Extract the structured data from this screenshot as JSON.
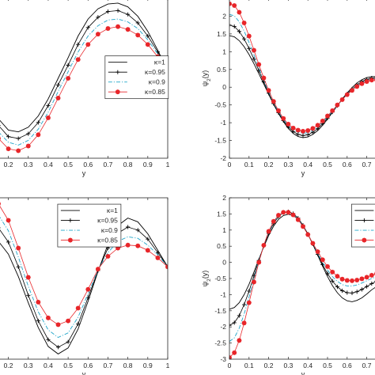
{
  "figure": {
    "note": "2x2 grid of line plots (panels cropped at image edges)"
  },
  "chart_data": [
    {
      "type": "line",
      "panel": "top-left",
      "xlabel": "y",
      "ylabel": "",
      "xlim": [
        0.15,
        1.0
      ],
      "ylim": [
        -0.35,
        1.35
      ],
      "xticks": [
        "0.2",
        "0.3",
        "0.4",
        "0.5",
        "0.6",
        "0.7",
        "0.8",
        "0.9",
        "1"
      ],
      "xtick_values": [
        0.2,
        0.3,
        0.4,
        0.5,
        0.6,
        0.7,
        0.8,
        0.9,
        1.0
      ],
      "yticks": [],
      "legend": "center-right",
      "legend_pos": [
        0.63,
        0.34
      ],
      "grid": false,
      "x": [
        0.15,
        0.2,
        0.25,
        0.3,
        0.35,
        0.4,
        0.45,
        0.5,
        0.55,
        0.6,
        0.65,
        0.7,
        0.75,
        0.8,
        0.85,
        0.9,
        0.95,
        1.0
      ],
      "series": [
        {
          "name": "κ=1",
          "style": "solid",
          "color": "#000000",
          "marker": "none",
          "values": [
            0.07,
            -0.05,
            -0.07,
            -0.02,
            0.1,
            0.28,
            0.5,
            0.72,
            0.95,
            1.13,
            1.24,
            1.29,
            1.3,
            1.26,
            1.16,
            1.0,
            0.8,
            0.58
          ]
        },
        {
          "name": "κ=0.95",
          "style": "solid",
          "color": "#000000",
          "marker": "plus",
          "values": [
            0.0,
            -0.12,
            -0.14,
            -0.09,
            0.03,
            0.21,
            0.43,
            0.64,
            0.86,
            1.04,
            1.15,
            1.21,
            1.22,
            1.18,
            1.09,
            0.95,
            0.78,
            0.58
          ]
        },
        {
          "name": "κ=0.9",
          "style": "dashdot",
          "color": "#1fa5c9",
          "marker": "none",
          "values": [
            -0.07,
            -0.18,
            -0.21,
            -0.16,
            -0.04,
            0.14,
            0.36,
            0.57,
            0.78,
            0.95,
            1.06,
            1.12,
            1.13,
            1.1,
            1.03,
            0.91,
            0.76,
            0.58
          ]
        },
        {
          "name": "κ=0.85",
          "style": "solid",
          "color": "#e8262a",
          "marker": "star",
          "values": [
            -0.14,
            -0.25,
            -0.27,
            -0.22,
            -0.1,
            0.08,
            0.29,
            0.5,
            0.7,
            0.86,
            0.97,
            1.03,
            1.05,
            1.02,
            0.96,
            0.86,
            0.73,
            0.58
          ]
        }
      ]
    },
    {
      "type": "line",
      "panel": "top-right",
      "xlabel": "y",
      "ylabel": "ψ",
      "ylabel_sub": "2",
      "ylabel_suffix": "(y)",
      "xlim": [
        0.0,
        0.75
      ],
      "ylim": [
        -2.0,
        2.5
      ],
      "xticks": [
        "0",
        "0.1",
        "0.2",
        "0.3",
        "0.4",
        "0.5",
        "0.6",
        "0.7"
      ],
      "xtick_values": [
        0,
        0.1,
        0.2,
        0.3,
        0.4,
        0.5,
        0.6,
        0.7
      ],
      "yticks": [
        "-2",
        "-1.5",
        "-1",
        "-0.5",
        "0",
        "0.5",
        "1",
        "1.5",
        "2"
      ],
      "ytick_values": [
        -2,
        -1.5,
        -1,
        -0.5,
        0,
        0.5,
        1,
        1.5,
        2
      ],
      "legend": "none",
      "grid": false,
      "x": [
        0,
        0.025,
        0.05,
        0.075,
        0.1,
        0.125,
        0.15,
        0.175,
        0.2,
        0.225,
        0.25,
        0.275,
        0.3,
        0.325,
        0.35,
        0.375,
        0.4,
        0.425,
        0.45,
        0.475,
        0.5,
        0.525,
        0.55,
        0.575,
        0.6,
        0.625,
        0.65,
        0.675,
        0.7,
        0.725,
        0.75
      ],
      "series": [
        {
          "name": "κ=1",
          "style": "solid",
          "color": "#000000",
          "marker": "none",
          "values": [
            1.45,
            1.42,
            1.31,
            1.14,
            0.92,
            0.66,
            0.38,
            0.09,
            -0.2,
            -0.48,
            -0.74,
            -0.97,
            -1.16,
            -1.3,
            -1.39,
            -1.42,
            -1.4,
            -1.33,
            -1.22,
            -1.07,
            -0.9,
            -0.71,
            -0.52,
            -0.33,
            -0.16,
            -0.01,
            0.12,
            0.21,
            0.27,
            0.3,
            0.3
          ]
        },
        {
          "name": "κ=0.95",
          "style": "solid",
          "color": "#000000",
          "marker": "plus",
          "values": [
            1.75,
            1.71,
            1.57,
            1.36,
            1.09,
            0.79,
            0.47,
            0.15,
            -0.17,
            -0.46,
            -0.72,
            -0.94,
            -1.12,
            -1.25,
            -1.33,
            -1.36,
            -1.34,
            -1.27,
            -1.17,
            -1.03,
            -0.87,
            -0.7,
            -0.52,
            -0.35,
            -0.19,
            -0.05,
            0.07,
            0.16,
            0.22,
            0.26,
            0.27
          ]
        },
        {
          "name": "κ=0.9",
          "style": "dashdot",
          "color": "#1fa5c9",
          "marker": "none",
          "values": [
            2.05,
            2.01,
            1.84,
            1.58,
            1.26,
            0.91,
            0.55,
            0.2,
            -0.13,
            -0.43,
            -0.69,
            -0.91,
            -1.08,
            -1.2,
            -1.27,
            -1.3,
            -1.28,
            -1.22,
            -1.12,
            -0.99,
            -0.84,
            -0.68,
            -0.51,
            -0.35,
            -0.2,
            -0.07,
            0.04,
            0.13,
            0.19,
            0.23,
            0.24
          ]
        },
        {
          "name": "κ=0.85",
          "style": "solid",
          "color": "#e8262a",
          "marker": "star",
          "values": [
            2.35,
            2.3,
            2.11,
            1.81,
            1.44,
            1.04,
            0.64,
            0.26,
            -0.09,
            -0.4,
            -0.66,
            -0.88,
            -1.04,
            -1.15,
            -1.21,
            -1.24,
            -1.22,
            -1.16,
            -1.07,
            -0.95,
            -0.81,
            -0.66,
            -0.5,
            -0.35,
            -0.21,
            -0.09,
            0.02,
            0.1,
            0.16,
            0.2,
            0.21
          ]
        }
      ]
    },
    {
      "type": "line",
      "panel": "bottom-left",
      "xlabel": "y",
      "ylabel": "",
      "xlim": [
        0.15,
        1.0
      ],
      "ylim": [
        -1.15,
        1.0
      ],
      "xticks": [
        "0.2",
        "0.3",
        "0.4",
        "0.5",
        "0.6",
        "0.7",
        "0.8",
        "0.9",
        "1"
      ],
      "xtick_values": [
        0.2,
        0.3,
        0.4,
        0.5,
        0.6,
        0.7,
        0.8,
        0.9,
        1.0
      ],
      "yticks": [],
      "legend": "top-center",
      "legend_pos": [
        0.35,
        0.02
      ],
      "grid": false,
      "x": [
        0.15,
        0.2,
        0.25,
        0.3,
        0.35,
        0.4,
        0.45,
        0.5,
        0.55,
        0.6,
        0.65,
        0.7,
        0.75,
        0.8,
        0.85,
        0.9,
        0.95,
        1.0
      ],
      "series": [
        {
          "name": "κ=1",
          "style": "solid",
          "color": "#000000",
          "marker": "none",
          "values": [
            0.42,
            0.25,
            -0.05,
            -0.4,
            -0.73,
            -0.98,
            -1.08,
            -1.0,
            -0.75,
            -0.38,
            0.02,
            0.38,
            0.63,
            0.73,
            0.68,
            0.52,
            0.3,
            0.08
          ]
        },
        {
          "name": "κ=0.95",
          "style": "solid",
          "color": "#000000",
          "marker": "plus",
          "values": [
            0.6,
            0.41,
            0.08,
            -0.3,
            -0.64,
            -0.89,
            -0.99,
            -0.92,
            -0.68,
            -0.33,
            0.03,
            0.33,
            0.53,
            0.61,
            0.57,
            0.45,
            0.27,
            0.08
          ]
        },
        {
          "name": "κ=0.9",
          "style": "dashdot",
          "color": "#1fa5c9",
          "marker": "none",
          "values": [
            0.77,
            0.56,
            0.21,
            -0.18,
            -0.52,
            -0.76,
            -0.86,
            -0.8,
            -0.59,
            -0.28,
            0.04,
            0.27,
            0.42,
            0.48,
            0.46,
            0.37,
            0.24,
            0.08
          ]
        },
        {
          "name": "κ=0.85",
          "style": "solid",
          "color": "#e8262a",
          "marker": "star",
          "values": [
            0.92,
            0.7,
            0.33,
            -0.06,
            -0.39,
            -0.6,
            -0.69,
            -0.64,
            -0.47,
            -0.22,
            0.05,
            0.22,
            0.33,
            0.37,
            0.36,
            0.3,
            0.2,
            0.08
          ]
        }
      ]
    },
    {
      "type": "line",
      "panel": "bottom-right",
      "xlabel": "y",
      "ylabel": "ψ",
      "ylabel_sub": "2",
      "ylabel_suffix": "(y)",
      "xlim": [
        0.0,
        0.75
      ],
      "ylim": [
        -3.0,
        2.0
      ],
      "xticks": [
        "0",
        "0.1",
        "0.2",
        "0.3",
        "0.4",
        "0.5",
        "0.6",
        "0.7"
      ],
      "xtick_values": [
        0,
        0.1,
        0.2,
        0.3,
        0.4,
        0.5,
        0.6,
        0.7
      ],
      "yticks": [
        "-3",
        "-2.5",
        "-2",
        "-1.5",
        "-1",
        "-0.5",
        "0",
        "0.5",
        "1",
        "1.5",
        "2"
      ],
      "ytick_values": [
        -3,
        -2.5,
        -2,
        -1.5,
        -1,
        -0.5,
        0,
        0.5,
        1,
        1.5,
        2
      ],
      "legend": "top-right",
      "legend_pos": [
        0.83,
        0.02
      ],
      "grid": false,
      "x": [
        0,
        0.025,
        0.05,
        0.075,
        0.1,
        0.125,
        0.15,
        0.175,
        0.2,
        0.225,
        0.25,
        0.275,
        0.3,
        0.325,
        0.35,
        0.375,
        0.4,
        0.425,
        0.45,
        0.475,
        0.5,
        0.525,
        0.55,
        0.575,
        0.6,
        0.625,
        0.65,
        0.675,
        0.7,
        0.725,
        0.75
      ],
      "series": [
        {
          "name": "κ=1",
          "style": "solid",
          "color": "#000000",
          "marker": "none",
          "values": [
            -1.45,
            -1.4,
            -1.25,
            -1.0,
            -0.68,
            -0.3,
            0.1,
            0.48,
            0.83,
            1.12,
            1.33,
            1.45,
            1.49,
            1.45,
            1.33,
            1.13,
            0.87,
            0.56,
            0.22,
            -0.12,
            -0.44,
            -0.72,
            -0.94,
            -1.1,
            -1.19,
            -1.22,
            -1.18,
            -1.1,
            -0.98,
            -0.85,
            -0.75
          ]
        },
        {
          "name": "κ=0.95",
          "style": "solid",
          "color": "#000000",
          "marker": "plus",
          "values": [
            -1.95,
            -1.87,
            -1.65,
            -1.31,
            -0.89,
            -0.42,
            0.06,
            0.51,
            0.9,
            1.2,
            1.42,
            1.54,
            1.57,
            1.51,
            1.37,
            1.15,
            0.88,
            0.57,
            0.25,
            -0.07,
            -0.35,
            -0.58,
            -0.76,
            -0.88,
            -0.94,
            -0.95,
            -0.91,
            -0.84,
            -0.75,
            -0.66,
            -0.58
          ]
        },
        {
          "name": "κ=0.9",
          "style": "dashdot",
          "color": "#1fa5c9",
          "marker": "none",
          "values": [
            -2.45,
            -2.34,
            -2.04,
            -1.6,
            -1.07,
            -0.51,
            0.04,
            0.53,
            0.93,
            1.24,
            1.44,
            1.54,
            1.55,
            1.48,
            1.34,
            1.12,
            0.86,
            0.57,
            0.28,
            0.0,
            -0.24,
            -0.44,
            -0.59,
            -0.69,
            -0.73,
            -0.73,
            -0.7,
            -0.64,
            -0.57,
            -0.5,
            -0.44
          ]
        },
        {
          "name": "κ=0.85",
          "style": "solid",
          "color": "#e8262a",
          "marker": "star",
          "values": [
            -2.95,
            -2.8,
            -2.42,
            -1.88,
            -1.25,
            -0.61,
            0.0,
            0.53,
            0.96,
            1.27,
            1.46,
            1.55,
            1.55,
            1.47,
            1.32,
            1.11,
            0.86,
            0.59,
            0.33,
            0.08,
            -0.13,
            -0.3,
            -0.43,
            -0.52,
            -0.56,
            -0.57,
            -0.55,
            -0.51,
            -0.46,
            -0.4,
            -0.35
          ]
        }
      ]
    }
  ]
}
